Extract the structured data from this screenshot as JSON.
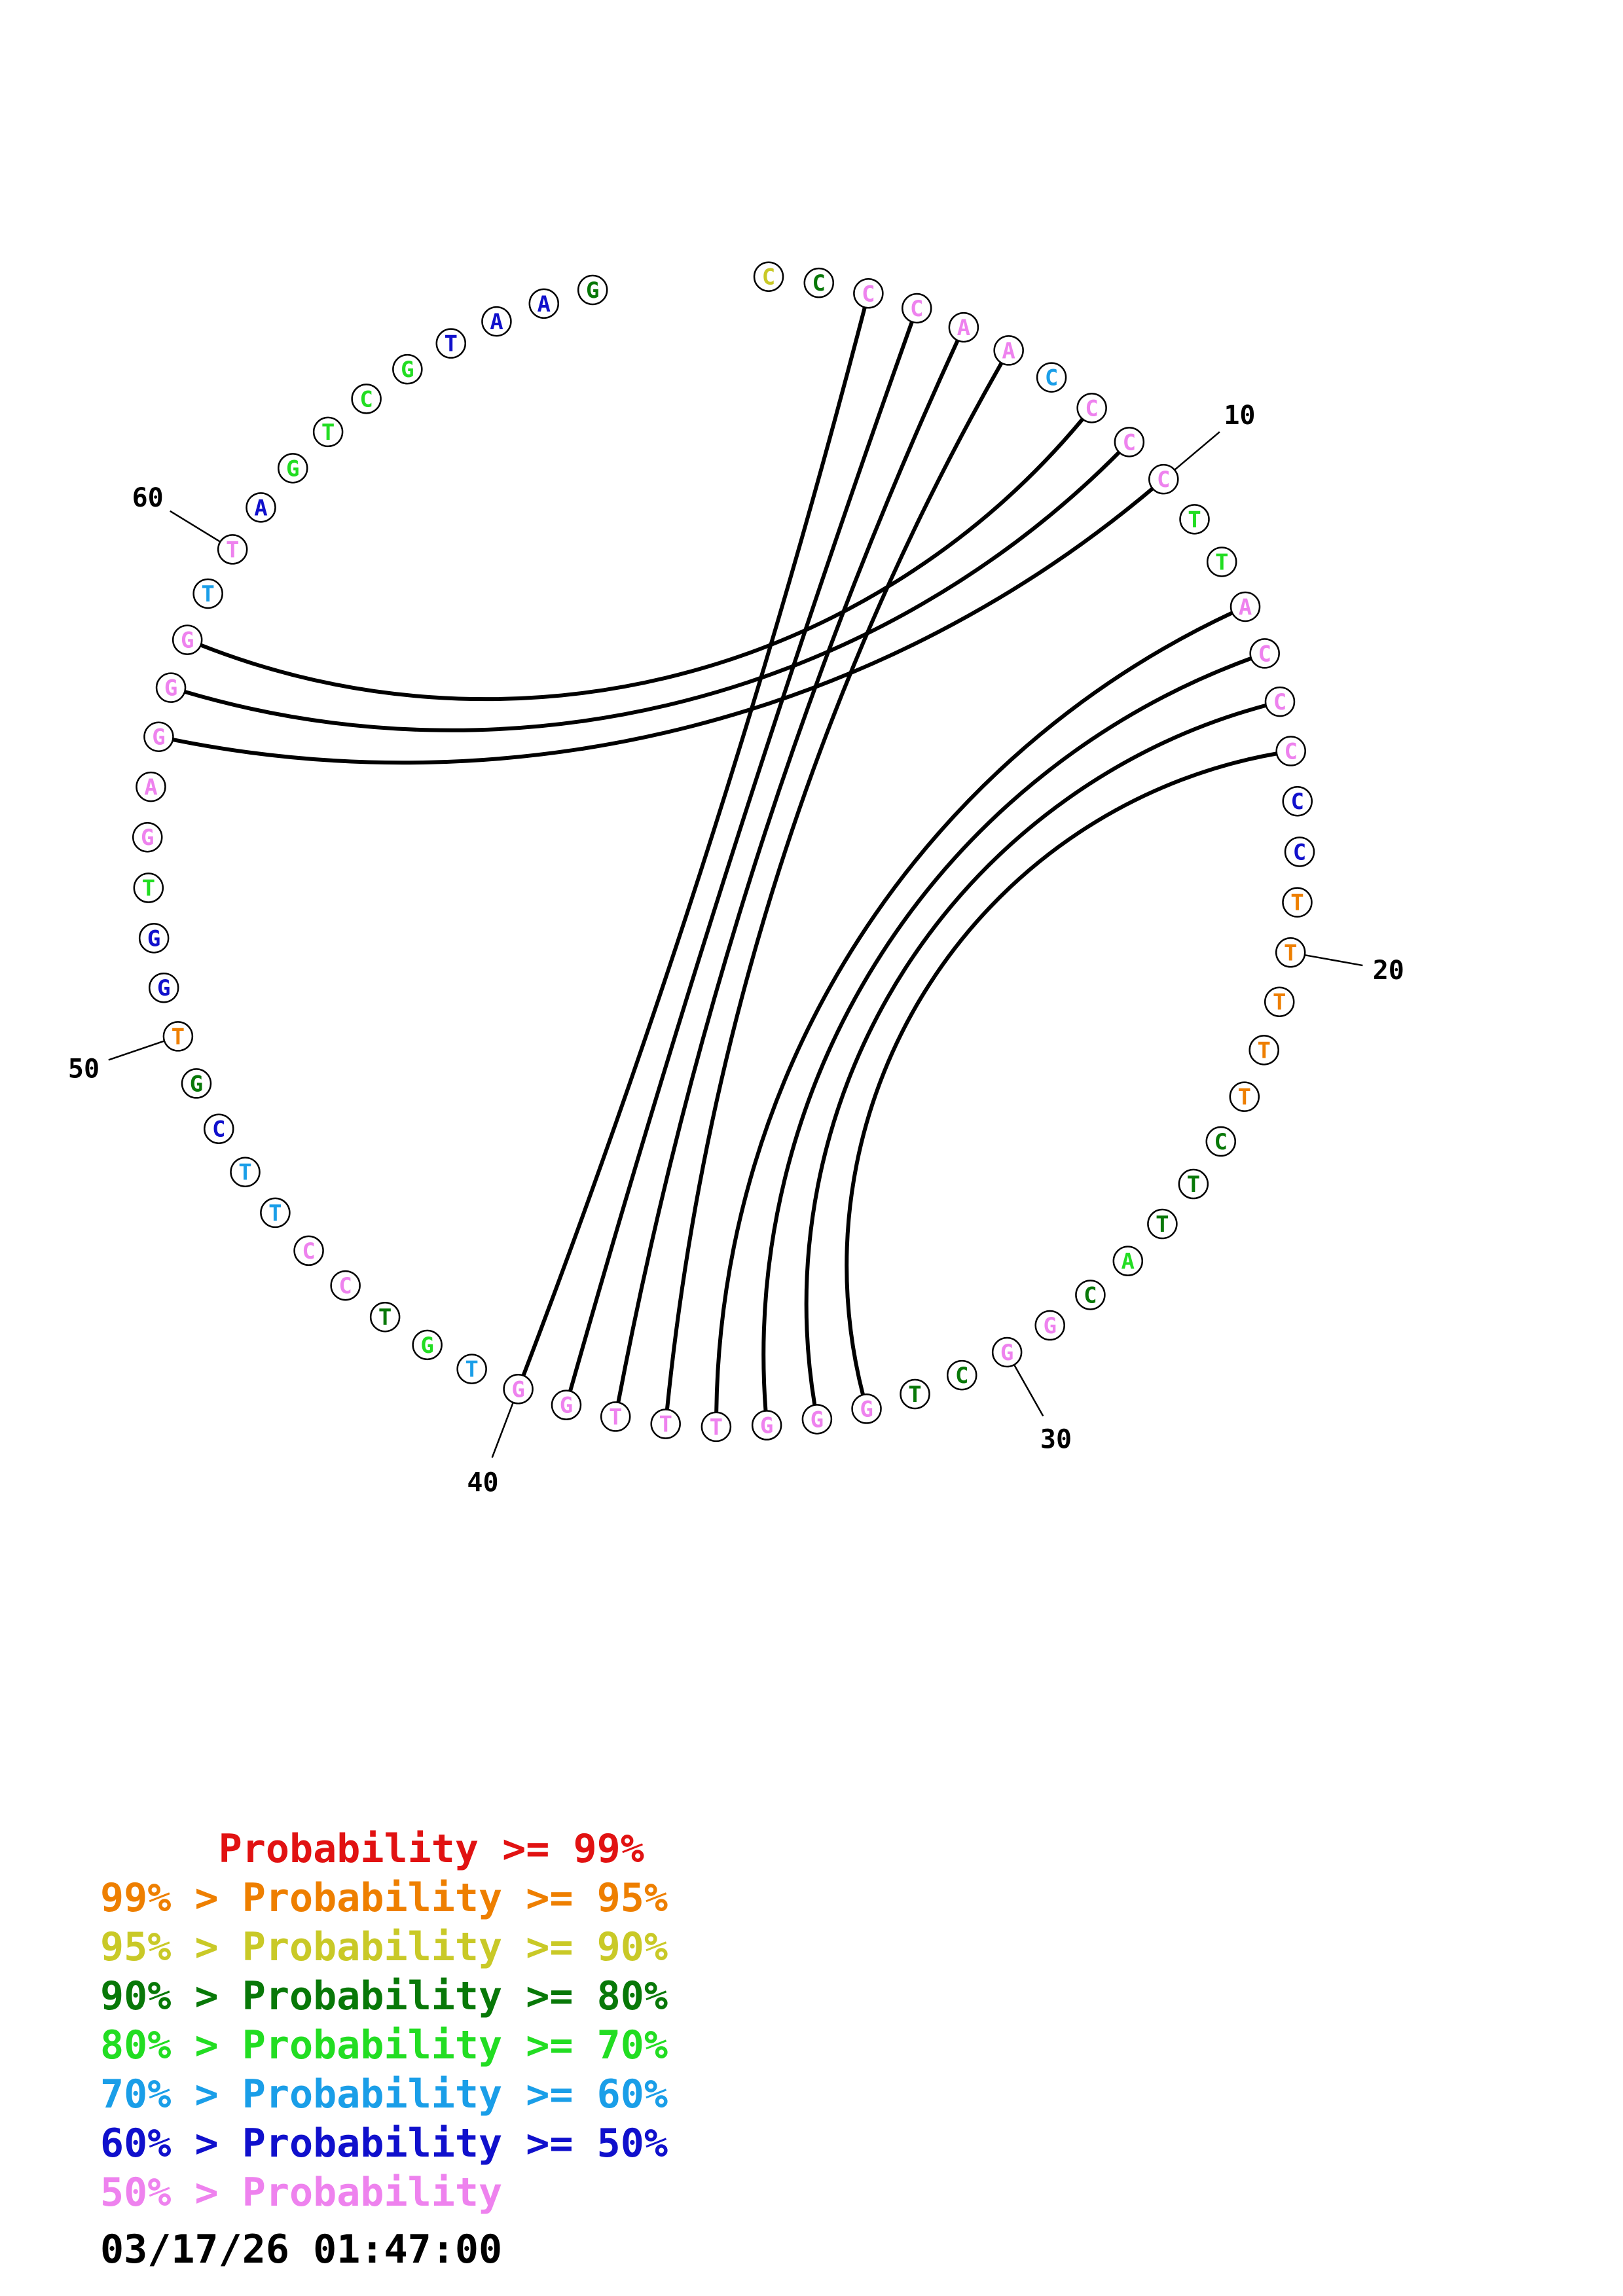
{
  "sequence": [
    {
      "n": 1,
      "base": "C",
      "color": "#c9c927"
    },
    {
      "n": 2,
      "base": "C",
      "color": "#087808"
    },
    {
      "n": 3,
      "base": "C",
      "color": "#ee82ee"
    },
    {
      "n": 4,
      "base": "C",
      "color": "#ee82ee"
    },
    {
      "n": 5,
      "base": "A",
      "color": "#ee82ee"
    },
    {
      "n": 6,
      "base": "A",
      "color": "#ee82ee"
    },
    {
      "n": 7,
      "base": "C",
      "color": "#1a9ee8"
    },
    {
      "n": 8,
      "base": "C",
      "color": "#ee82ee"
    },
    {
      "n": 9,
      "base": "C",
      "color": "#ee82ee"
    },
    {
      "n": 10,
      "base": "C",
      "color": "#ee82ee"
    },
    {
      "n": 11,
      "base": "T",
      "color": "#22dd22"
    },
    {
      "n": 12,
      "base": "T",
      "color": "#22dd22"
    },
    {
      "n": 13,
      "base": "A",
      "color": "#ee82ee"
    },
    {
      "n": 14,
      "base": "C",
      "color": "#ee82ee"
    },
    {
      "n": 15,
      "base": "C",
      "color": "#ee82ee"
    },
    {
      "n": 16,
      "base": "C",
      "color": "#ee82ee"
    },
    {
      "n": 17,
      "base": "C",
      "color": "#1010cc"
    },
    {
      "n": 18,
      "base": "C",
      "color": "#1010cc"
    },
    {
      "n": 19,
      "base": "T",
      "color": "#ee7f00"
    },
    {
      "n": 20,
      "base": "T",
      "color": "#ee7f00"
    },
    {
      "n": 21,
      "base": "T",
      "color": "#ee7f00"
    },
    {
      "n": 22,
      "base": "T",
      "color": "#ee7f00"
    },
    {
      "n": 23,
      "base": "T",
      "color": "#ee7f00"
    },
    {
      "n": 24,
      "base": "C",
      "color": "#087808"
    },
    {
      "n": 25,
      "base": "T",
      "color": "#087808"
    },
    {
      "n": 26,
      "base": "T",
      "color": "#087808"
    },
    {
      "n": 27,
      "base": "A",
      "color": "#22dd22"
    },
    {
      "n": 28,
      "base": "C",
      "color": "#087808"
    },
    {
      "n": 29,
      "base": "G",
      "color": "#ee82ee"
    },
    {
      "n": 30,
      "base": "G",
      "color": "#ee82ee"
    },
    {
      "n": 31,
      "base": "C",
      "color": "#087808"
    },
    {
      "n": 32,
      "base": "T",
      "color": "#087808"
    },
    {
      "n": 33,
      "base": "G",
      "color": "#ee82ee"
    },
    {
      "n": 34,
      "base": "G",
      "color": "#ee82ee"
    },
    {
      "n": 35,
      "base": "G",
      "color": "#ee82ee"
    },
    {
      "n": 36,
      "base": "T",
      "color": "#ee82ee"
    },
    {
      "n": 37,
      "base": "T",
      "color": "#ee82ee"
    },
    {
      "n": 38,
      "base": "T",
      "color": "#ee82ee"
    },
    {
      "n": 39,
      "base": "G",
      "color": "#ee82ee"
    },
    {
      "n": 40,
      "base": "G",
      "color": "#ee82ee"
    },
    {
      "n": 41,
      "base": "T",
      "color": "#1a9ee8"
    },
    {
      "n": 42,
      "base": "G",
      "color": "#22dd22"
    },
    {
      "n": 43,
      "base": "T",
      "color": "#087808"
    },
    {
      "n": 44,
      "base": "C",
      "color": "#ee82ee"
    },
    {
      "n": 45,
      "base": "C",
      "color": "#ee82ee"
    },
    {
      "n": 46,
      "base": "T",
      "color": "#1a9ee8"
    },
    {
      "n": 47,
      "base": "T",
      "color": "#1a9ee8"
    },
    {
      "n": 48,
      "base": "C",
      "color": "#1010cc"
    },
    {
      "n": 49,
      "base": "G",
      "color": "#087808"
    },
    {
      "n": 50,
      "base": "T",
      "color": "#ee7f00"
    },
    {
      "n": 51,
      "base": "G",
      "color": "#1010cc"
    },
    {
      "n": 52,
      "base": "G",
      "color": "#1010cc"
    },
    {
      "n": 53,
      "base": "T",
      "color": "#22dd22"
    },
    {
      "n": 54,
      "base": "G",
      "color": "#ee82ee"
    },
    {
      "n": 55,
      "base": "A",
      "color": "#ee82ee"
    },
    {
      "n": 56,
      "base": "G",
      "color": "#ee82ee"
    },
    {
      "n": 57,
      "base": "G",
      "color": "#ee82ee"
    },
    {
      "n": 58,
      "base": "G",
      "color": "#ee82ee"
    },
    {
      "n": 59,
      "base": "T",
      "color": "#1a9ee8"
    },
    {
      "n": 60,
      "base": "T",
      "color": "#ee82ee"
    },
    {
      "n": 61,
      "base": "A",
      "color": "#1010cc"
    },
    {
      "n": 62,
      "base": "G",
      "color": "#22dd22"
    },
    {
      "n": 63,
      "base": "T",
      "color": "#22dd22"
    },
    {
      "n": 64,
      "base": "C",
      "color": "#22dd22"
    },
    {
      "n": 65,
      "base": "G",
      "color": "#22dd22"
    },
    {
      "n": 66,
      "base": "T",
      "color": "#1010cc"
    },
    {
      "n": 67,
      "base": "A",
      "color": "#1010cc"
    },
    {
      "n": 68,
      "base": "A",
      "color": "#1010cc"
    },
    {
      "n": 69,
      "base": "G",
      "color": "#087808"
    }
  ],
  "pairs": [
    [
      3,
      40
    ],
    [
      4,
      39
    ],
    [
      5,
      38
    ],
    [
      6,
      37
    ],
    [
      8,
      58
    ],
    [
      9,
      57
    ],
    [
      10,
      56
    ],
    [
      13,
      36
    ],
    [
      14,
      35
    ],
    [
      15,
      34
    ],
    [
      16,
      33
    ]
  ],
  "ticks": [
    {
      "n": 10,
      "label": "10"
    },
    {
      "n": 20,
      "label": "20"
    },
    {
      "n": 30,
      "label": "30"
    },
    {
      "n": 40,
      "label": "40"
    },
    {
      "n": 50,
      "label": "50"
    },
    {
      "n": 60,
      "label": "60"
    }
  ],
  "legend": [
    {
      "text": "     Probability >= 99%",
      "color": "#e11212"
    },
    {
      "text": "99% > Probability >= 95%",
      "color": "#ee7f00"
    },
    {
      "text": "95% > Probability >= 90%",
      "color": "#c9c927"
    },
    {
      "text": "90% > Probability >= 80%",
      "color": "#087808"
    },
    {
      "text": "80% > Probability >= 70%",
      "color": "#22dd22"
    },
    {
      "text": "70% > Probability >= 60%",
      "color": "#1a9ee8"
    },
    {
      "text": "60% > Probability >= 50%",
      "color": "#1010cc"
    },
    {
      "text": "50% > Probability",
      "color": "#ee82ee"
    }
  ],
  "timestamp": "03/17/26 01:47:00"
}
